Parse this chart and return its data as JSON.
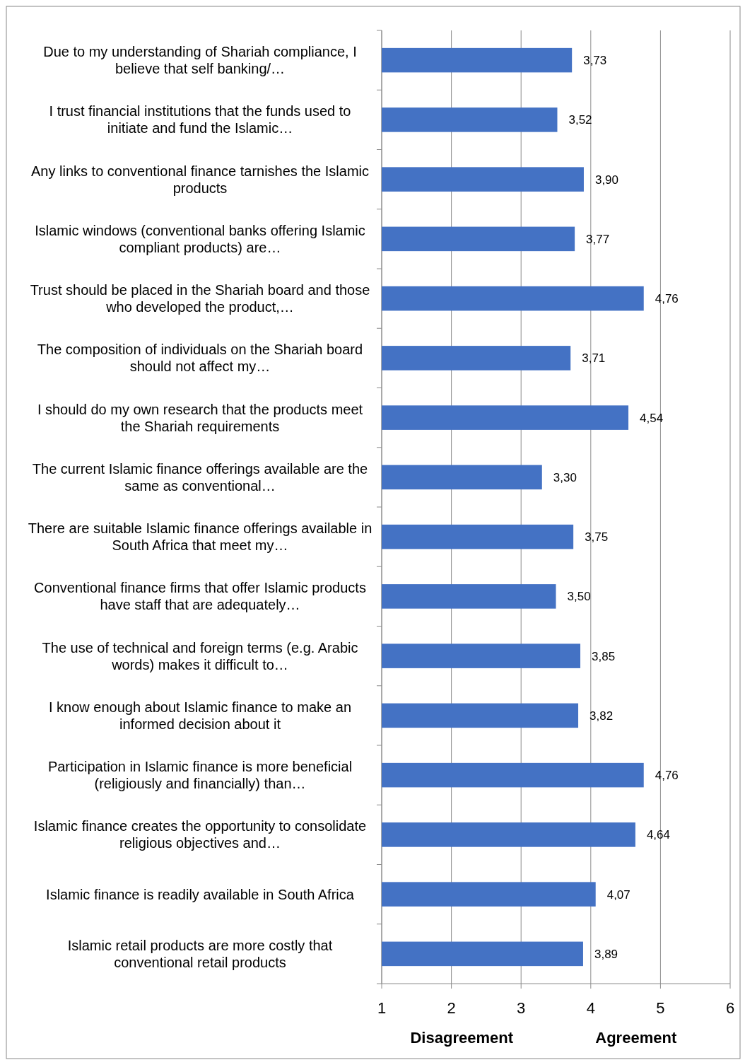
{
  "chart_data": {
    "type": "bar",
    "orientation": "horizontal",
    "categories": [
      "Due to my understanding of Shariah compliance, I believe that self banking/…",
      "I trust financial institutions that the funds used to initiate and fund the Islamic…",
      "Any links to conventional finance tarnishes the Islamic products",
      "Islamic windows (conventional banks offering Islamic compliant products) are…",
      "Trust should be placed in the Shariah board and those who developed the product,…",
      "The composition of individuals on the Shariah board should not affect my…",
      "I should do my own research that the products meet the Shariah requirements",
      "The current Islamic finance offerings available are the same as conventional…",
      "There are suitable Islamic finance offerings available in South Africa that meet my…",
      "Conventional finance firms that offer Islamic products have staff that are adequately…",
      "The use of technical and foreign terms (e.g. Arabic words) makes it difficult to…",
      "I know enough about Islamic finance to make an informed decision about it",
      "Participation in Islamic finance is more beneficial (religiously and financially) than…",
      "Islamic finance creates the opportunity to consolidate religious objectives and…",
      "Islamic finance is readily available in South Africa",
      "Islamic retail products are more costly that conventional retail products"
    ],
    "values": [
      3.73,
      3.52,
      3.9,
      3.77,
      4.76,
      3.71,
      4.54,
      3.3,
      3.75,
      3.5,
      3.85,
      3.82,
      4.76,
      4.64,
      4.07,
      3.89
    ],
    "value_labels": [
      "3,73",
      "3,52",
      "3,90",
      "3,77",
      "4,76",
      "3,71",
      "4,54",
      "3,30",
      "3,75",
      "3,50",
      "3,85",
      "3,82",
      "4,76",
      "4,64",
      "4,07",
      "3,89"
    ],
    "color": "#4472c4",
    "xlim": [
      1,
      6
    ],
    "xticks": [
      1,
      2,
      3,
      4,
      5,
      6
    ],
    "grid": "x",
    "annotations": [
      "Disagreement",
      "Agreement"
    ]
  }
}
